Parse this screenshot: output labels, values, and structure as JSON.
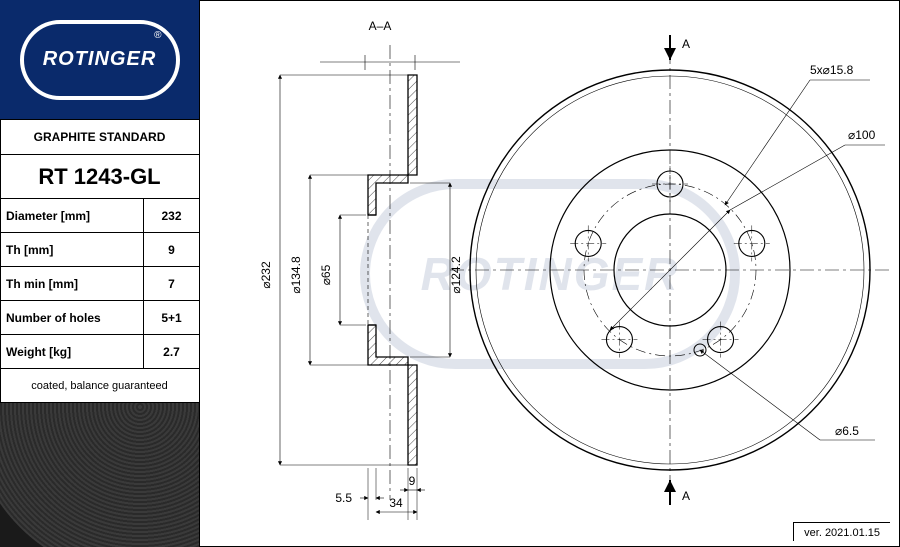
{
  "brand": "ROTINGER",
  "registered": "®",
  "logo_bg": "#0a2a6b",
  "logo_fg": "#ffffff",
  "standard_label": "GRAPHITE STANDARD",
  "part_number": "RT 1243-GL",
  "specs": [
    {
      "label": "Diameter [mm]",
      "value": "232"
    },
    {
      "label": "Th [mm]",
      "value": "9"
    },
    {
      "label": "Th min [mm]",
      "value": "7"
    },
    {
      "label": "Number of holes",
      "value": "5+1"
    },
    {
      "label": "Weight [kg]",
      "value": "2.7"
    }
  ],
  "note": "coated, balance guaranteed",
  "version": "ver. 2021.01.15",
  "drawing": {
    "line_color": "#000000",
    "line_width": 1,
    "thin_line_width": 0.7,
    "section": {
      "label": "A–A",
      "labels": {
        "d232": "⌀232",
        "d134_8": "⌀134.8",
        "d65": "⌀65",
        "d124_2": "⌀124.2",
        "t9": "9",
        "t34": "34",
        "t5_5": "5.5"
      },
      "geom": {
        "outer_d": 232,
        "step_d": 134.8,
        "bore_d": 65,
        "inner_face_d": 124.2,
        "flange_th": 9,
        "total_depth": 34,
        "lip": 5.5
      }
    },
    "front": {
      "labels": {
        "bolt_pattern": "5x⌀15.8",
        "pcd": "⌀100",
        "pilot": "⌀6.5",
        "section_mark": "A"
      },
      "geom": {
        "outer_r": 200,
        "step_r": 120,
        "hub_r": 56,
        "bolt_circle_r": 86,
        "bolt_hole_r": 13,
        "pilot_r": 6,
        "n_bolts": 5
      }
    }
  }
}
